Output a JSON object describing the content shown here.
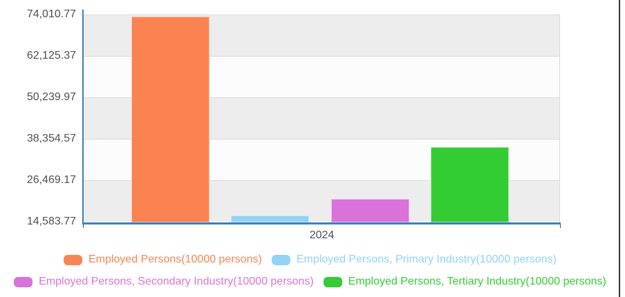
{
  "chart_data": {
    "type": "bar",
    "title": "",
    "x_categories": [
      "2024"
    ],
    "categories": [
      "2024"
    ],
    "series": [
      {
        "key": "total",
        "name": "Employed Persons(10000 persons)",
        "values": [
          73439
        ],
        "color": "#fb8351"
      },
      {
        "key": "primary-industry",
        "name": "Employed Persons, Primary Industry(10000 persons)",
        "values": [
          16300
        ],
        "color": "#90d2f8"
      },
      {
        "key": "secondary-industry",
        "name": "Employed Persons, Secondary Industry(10000 persons)",
        "values": [
          21150
        ],
        "color": "#d973d9"
      },
      {
        "key": "tertiary-industry",
        "name": "Employed Persons, Tertiary Industry(10000 persons)",
        "values": [
          35985
        ],
        "color": "#33cc33"
      }
    ],
    "y_axis": {
      "min": 14583.77,
      "max": 74010.77,
      "tick_interval": 11885.4,
      "tick_labels_bottom_to_top": [
        "14,583.77",
        "26,469.17",
        "38,354.57",
        "50,239.97",
        "62,125.37",
        "74,010.77"
      ]
    },
    "x_axis_label": "2024",
    "legend_position": "bottom",
    "legend_rows": [
      [
        0,
        1
      ],
      [
        2,
        3
      ]
    ],
    "grid": "horizontal-bands-alternating"
  },
  "style_colors": {
    "axis_line": "#3c7ebf",
    "band_gray": "#ededed",
    "band_white": "#fcfcfc",
    "gridline": "#d9d9d9",
    "tick_label": "#4f4f4f"
  }
}
